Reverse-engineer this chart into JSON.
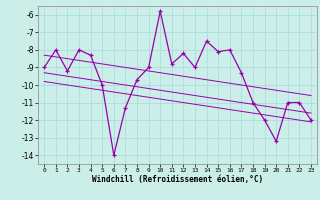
{
  "x": [
    0,
    1,
    2,
    3,
    4,
    5,
    6,
    7,
    8,
    9,
    10,
    11,
    12,
    13,
    14,
    15,
    16,
    17,
    18,
    19,
    20,
    21,
    22,
    23
  ],
  "y_main": [
    -9.0,
    -8.0,
    -9.2,
    -8.0,
    -8.3,
    -10.0,
    -14.0,
    -11.3,
    -9.7,
    -9.0,
    -5.8,
    -8.8,
    -8.2,
    -9.0,
    -7.5,
    -8.1,
    -8.0,
    -9.3,
    -11.0,
    -12.0,
    -13.2,
    -11.0,
    -11.0,
    -12.0
  ],
  "y_reg1": [
    -8.3,
    -8.4,
    -8.5,
    -8.6,
    -8.7,
    -8.8,
    -8.9,
    -9.0,
    -9.1,
    -9.2,
    -9.3,
    -9.4,
    -9.5,
    -9.6,
    -9.7,
    -9.8,
    -9.9,
    -10.0,
    -10.1,
    -10.2,
    -10.3,
    -10.4,
    -10.5,
    -10.6
  ],
  "y_reg2": [
    -9.3,
    -9.4,
    -9.5,
    -9.6,
    -9.7,
    -9.8,
    -9.9,
    -10.0,
    -10.1,
    -10.2,
    -10.3,
    -10.4,
    -10.5,
    -10.6,
    -10.7,
    -10.8,
    -10.9,
    -11.0,
    -11.1,
    -11.2,
    -11.3,
    -11.4,
    -11.5,
    -11.6
  ],
  "y_reg3": [
    -9.8,
    -9.9,
    -10.0,
    -10.1,
    -10.2,
    -10.3,
    -10.4,
    -10.5,
    -10.6,
    -10.7,
    -10.8,
    -10.9,
    -11.0,
    -11.1,
    -11.2,
    -11.3,
    -11.4,
    -11.5,
    -11.6,
    -11.7,
    -11.8,
    -11.9,
    -12.0,
    -12.1
  ],
  "color": "#9900aa",
  "bg_color": "#cceee8",
  "grid_color": "#aadddd",
  "xlabel": "Windchill (Refroidissement éolien,°C)",
  "ylim": [
    -14.5,
    -5.5
  ],
  "xlim": [
    -0.5,
    23.5
  ],
  "yticks": [
    -14,
    -13,
    -12,
    -11,
    -10,
    -9,
    -8,
    -7,
    -6
  ],
  "xticks": [
    0,
    1,
    2,
    3,
    4,
    5,
    6,
    7,
    8,
    9,
    10,
    11,
    12,
    13,
    14,
    15,
    16,
    17,
    18,
    19,
    20,
    21,
    22,
    23
  ]
}
